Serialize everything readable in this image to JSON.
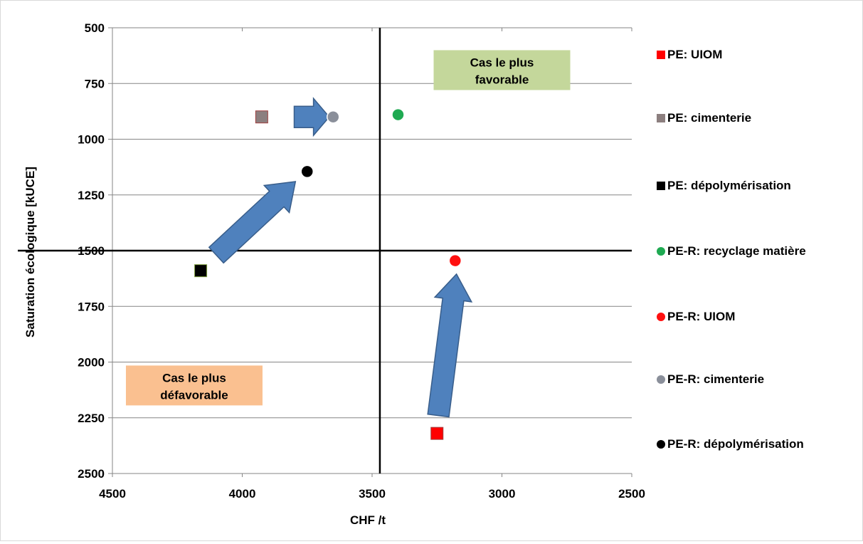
{
  "chart_data": {
    "type": "scatter",
    "xlabel": "CHF /t",
    "ylabel": "Saturation écologique  [kUCE]",
    "xlim": [
      4500,
      2500
    ],
    "ylim": [
      500,
      2500
    ],
    "x_reversed": true,
    "y_reversed": true,
    "xticks": [
      4500,
      4000,
      3500,
      3000,
      2500
    ],
    "yticks": [
      500,
      750,
      1000,
      1250,
      1500,
      1750,
      2000,
      2250,
      2500
    ],
    "xtick_labels": [
      "4500",
      "4000",
      "3500",
      "3000",
      "2500"
    ],
    "ytick_labels": [
      "500",
      "750",
      "1000",
      "1250",
      "1500",
      "1750",
      "2000",
      "2250",
      "2500"
    ],
    "grid": "horizontal",
    "legend_position": "right",
    "reference_lines": {
      "x": 3470,
      "y": 1500
    },
    "series": [
      {
        "name": "PE: UIOM",
        "marker": "square",
        "color": "#ff0000",
        "x": 3250,
        "y": 2320
      },
      {
        "name": "PE: cimenterie",
        "marker": "square",
        "color": "#8c7f7f",
        "x": 3925,
        "y": 900
      },
      {
        "name": "PE: dépolymérisation",
        "marker": "square",
        "color": "#000000",
        "x": 4160,
        "y": 1590
      },
      {
        "name": "PE-R: recyclage matière",
        "marker": "circle",
        "color": "#1faa52",
        "x": 3400,
        "y": 890
      },
      {
        "name": "PE-R: UIOM",
        "marker": "circle",
        "color": "#ff1010",
        "x": 3180,
        "y": 1545
      },
      {
        "name": "PE-R: cimenterie",
        "marker": "circle",
        "color": "#8a8f9a",
        "x": 3650,
        "y": 900
      },
      {
        "name": "PE-R: dépolymérisation",
        "marker": "circle",
        "color": "#000000",
        "x": 3750,
        "y": 1145
      }
    ],
    "arrows": [
      {
        "from": [
          3800,
          900
        ],
        "to": [
          3665,
          900
        ]
      },
      {
        "from": [
          4100,
          1520
        ],
        "to": [
          3795,
          1190
        ]
      },
      {
        "from": [
          3245,
          2240
        ],
        "to": [
          3175,
          1605
        ]
      }
    ],
    "annotations": [
      {
        "text": "Cas le plus favorable",
        "lines": [
          "Cas le plus",
          "favorable"
        ],
        "bg": "#c4d79b",
        "x": 3000,
        "y": 690
      },
      {
        "text": "Cas le plus défavorable",
        "lines": [
          "Cas le plus",
          "défavorable"
        ],
        "bg": "#fac090",
        "x": 4185,
        "y": 2105
      }
    ]
  },
  "colors": {
    "arrow_fill": "#4f81bd",
    "arrow_stroke": "#385d8a",
    "gridline": "#868686",
    "reference_line": "#000000"
  }
}
